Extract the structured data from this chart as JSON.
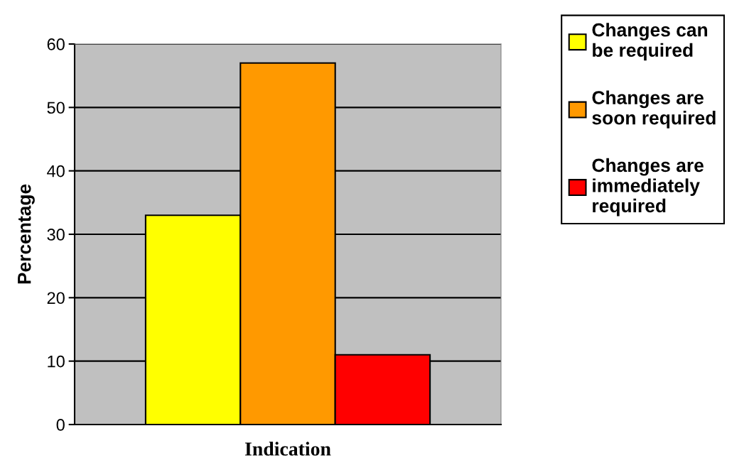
{
  "chart_data": {
    "type": "bar",
    "xlabel": "Indication",
    "ylabel": "Percentage",
    "categories": [
      null
    ],
    "series": [
      {
        "name": "Changes can\nbe required",
        "color": "#ffff00",
        "values": [
          33
        ]
      },
      {
        "name": "Changes are\nsoon required",
        "color": "#ff9900",
        "values": [
          57
        ]
      },
      {
        "name": "Changes are\nimmediately\nrequired",
        "color": "#ff0000",
        "values": [
          11
        ]
      }
    ],
    "ylim": [
      0,
      60
    ],
    "yticks": [
      0,
      10,
      20,
      30,
      40,
      50,
      60
    ],
    "grid": "y",
    "legend": "right"
  }
}
